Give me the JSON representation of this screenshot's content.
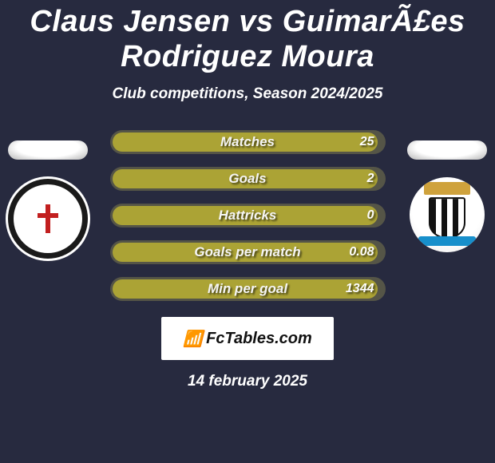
{
  "title": "Claus Jensen vs GuimarÃ£es Rodriguez Moura",
  "subtitle": "Club competitions, Season 2024/2025",
  "date": "14 february 2025",
  "colors": {
    "background": "#272a3f",
    "stat_pill_bg": "#555547",
    "stat_fill": "#aba335",
    "text": "#ffffff"
  },
  "stats": [
    {
      "label": "Matches",
      "value": "25",
      "fill_pct": 98
    },
    {
      "label": "Goals",
      "value": "2",
      "fill_pct": 98
    },
    {
      "label": "Hattricks",
      "value": "0",
      "fill_pct": 98
    },
    {
      "label": "Goals per match",
      "value": "0.08",
      "fill_pct": 98
    },
    {
      "label": "Min per goal",
      "value": "1344",
      "fill_pct": 98
    }
  ],
  "left_badge": {
    "name": "fulham-badge"
  },
  "right_badge": {
    "name": "newcastle-badge"
  },
  "brand": {
    "icon": "📶",
    "text": "FcTables.com"
  }
}
